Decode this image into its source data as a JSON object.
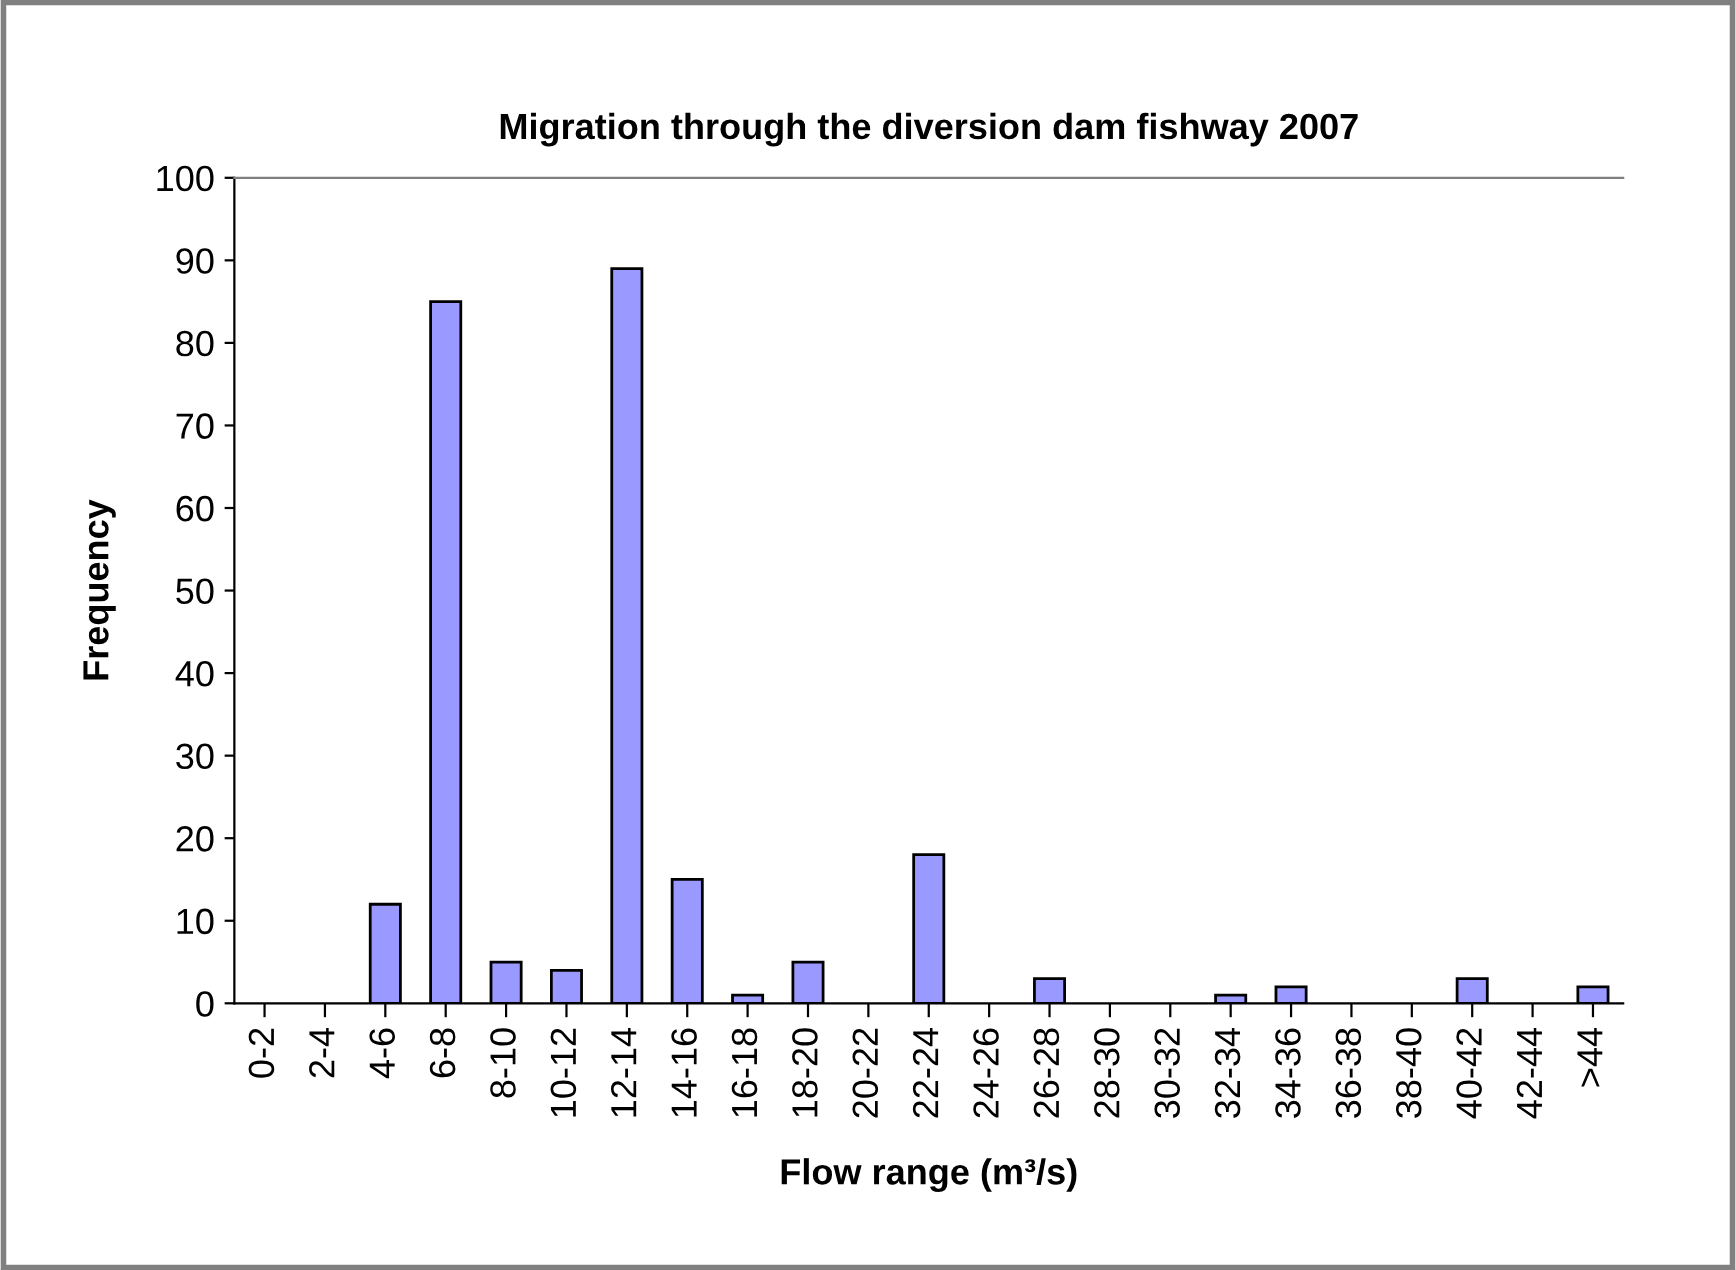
{
  "chart_data": {
    "type": "bar",
    "title": "Migration through the diversion dam fishway 2007",
    "xlabel": "Flow range (m³/s)",
    "ylabel": "Frequency",
    "categories": [
      "0-2",
      "2-4",
      "4-6",
      "6-8",
      "8-10",
      "10-12",
      "12-14",
      "14-16",
      "16-18",
      "18-20",
      "20-22",
      "22-24",
      "24-26",
      "26-28",
      "28-30",
      "30-32",
      "32-34",
      "34-36",
      "36-38",
      "38-40",
      "40-42",
      "42-44",
      ">44"
    ],
    "values": [
      0,
      0,
      12,
      85,
      5,
      4,
      89,
      15,
      1,
      5,
      0,
      18,
      0,
      3,
      0,
      0,
      1,
      2,
      0,
      0,
      3,
      0,
      2
    ],
    "color": "#9999ff",
    "ylim": [
      0,
      100
    ],
    "yticks": [
      0,
      10,
      20,
      30,
      40,
      50,
      60,
      70,
      80,
      90,
      100
    ],
    "grid": false,
    "legend": false
  }
}
